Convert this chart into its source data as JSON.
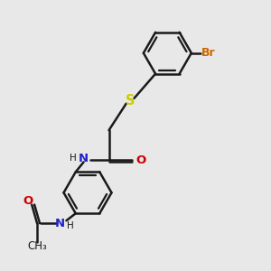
{
  "bg_color": "#e8e8e8",
  "bond_color": "#1a1a1a",
  "bond_width": 1.8,
  "S_color": "#cccc00",
  "N_color": "#2222cc",
  "O_color": "#cc0000",
  "Br_color": "#cc6600",
  "font_size": 8.5,
  "fig_size": [
    3.0,
    3.0
  ],
  "dpi": 100,
  "xlim": [
    0,
    10
  ],
  "ylim": [
    0,
    10
  ]
}
